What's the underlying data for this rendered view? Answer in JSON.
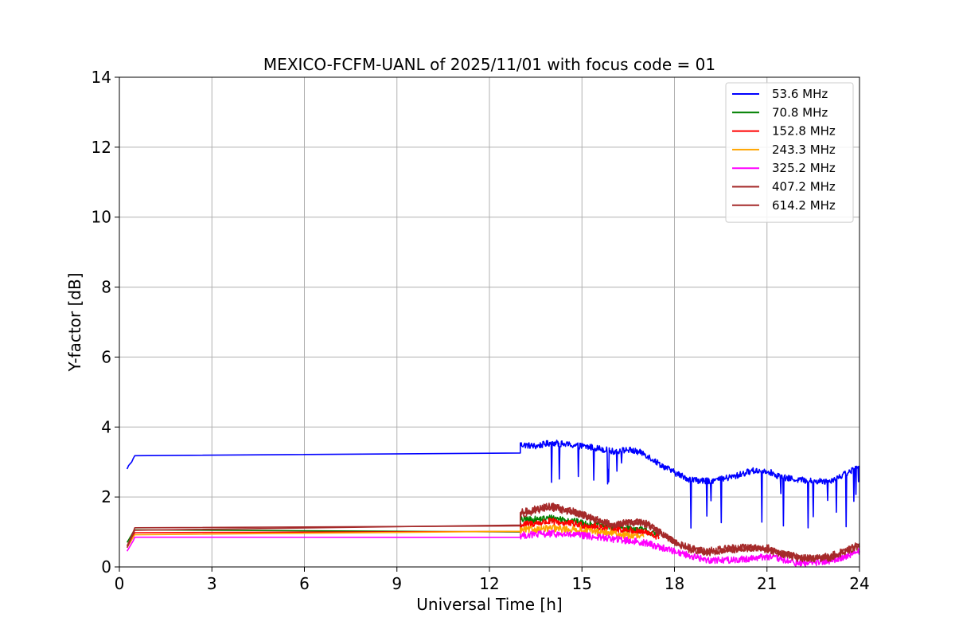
{
  "chart_data": {
    "type": "line",
    "title": "MEXICO-FCFM-UANL of 2025/11/01 with focus code = 01",
    "xlabel": "Universal Time [h]",
    "ylabel": "Y-factor [dB]",
    "xlim": [
      0,
      24
    ],
    "ylim": [
      0,
      14
    ],
    "xticks": [
      "0",
      "3",
      "6",
      "9",
      "12",
      "15",
      "18",
      "21",
      "24"
    ],
    "yticks": [
      "0",
      "2",
      "4",
      "6",
      "8",
      "10",
      "12",
      "14"
    ],
    "grid": true,
    "legend_position": "top-right",
    "series": [
      {
        "name": " 53.6 MHz",
        "color": "#0000ff",
        "x": [
          0.25,
          0.3,
          0.35,
          0.4,
          0.45,
          0.5,
          13.0,
          13.0,
          13.5,
          14.0,
          14.5,
          15.0,
          15.5,
          16.0,
          16.5,
          17.0,
          17.5,
          18.0,
          18.5,
          19.0,
          19.5,
          20.0,
          20.5,
          21.0,
          21.5,
          22.0,
          22.5,
          23.0,
          23.5,
          24.0
        ],
        "y": [
          2.8,
          2.9,
          2.95,
          3.0,
          3.1,
          3.18,
          3.22,
          3.5,
          3.45,
          3.55,
          3.5,
          3.45,
          3.4,
          3.3,
          3.35,
          3.25,
          2.95,
          2.7,
          2.5,
          2.45,
          2.5,
          2.6,
          2.75,
          2.75,
          2.55,
          2.5,
          2.45,
          2.45,
          2.65,
          2.85
        ]
      },
      {
        "name": " 70.8 MHz",
        "color": "#008000",
        "x": [
          0.25,
          0.35,
          0.45,
          0.5,
          13.0,
          13.0,
          13.5,
          14.0,
          14.5,
          15.0,
          15.5,
          16.0,
          16.5,
          17.0,
          17.5
        ],
        "y": [
          0.7,
          0.85,
          1.0,
          1.06,
          1.08,
          1.35,
          1.35,
          1.4,
          1.35,
          1.25,
          1.2,
          1.15,
          1.1,
          1.05,
          0.9
        ]
      },
      {
        "name": "152.8 MHz",
        "color": "#ff0000",
        "x": [
          0.25,
          0.35,
          0.45,
          0.5,
          13.0,
          13.0,
          13.5,
          14.0,
          14.5,
          15.0,
          15.5,
          16.0,
          16.5,
          17.0,
          17.5
        ],
        "y": [
          0.6,
          0.75,
          0.9,
          0.98,
          1.02,
          1.2,
          1.25,
          1.3,
          1.25,
          1.2,
          1.15,
          1.1,
          1.05,
          1.0,
          0.85
        ]
      },
      {
        "name": "243.3 MHz",
        "color": "#ffa500",
        "x": [
          0.25,
          0.35,
          0.45,
          0.5,
          13.0,
          13.0,
          14.0,
          15.0,
          16.0,
          17.0
        ],
        "y": [
          0.55,
          0.7,
          0.85,
          0.92,
          0.95,
          1.05,
          1.1,
          1.05,
          0.95,
          0.85
        ]
      },
      {
        "name": "325.2 MHz",
        "color": "#ff00ff",
        "x": [
          0.25,
          0.35,
          0.45,
          0.5,
          13.0,
          13.0,
          14.0,
          15.0,
          16.0,
          17.0,
          18.0,
          19.0,
          20.0,
          21.0,
          22.0,
          23.0,
          24.0
        ],
        "y": [
          0.45,
          0.6,
          0.75,
          0.85,
          0.9,
          0.9,
          0.95,
          0.9,
          0.8,
          0.7,
          0.45,
          0.2,
          0.2,
          0.3,
          0.1,
          0.15,
          0.45
        ]
      },
      {
        "name": "407.2 MHz",
        "color": "#a52a2a",
        "x": [
          0.25,
          0.35,
          0.45,
          0.5,
          13.0,
          13.0,
          14.0,
          15.0,
          16.0,
          17.0,
          18.0,
          19.0,
          20.0,
          21.0,
          22.0,
          23.0,
          24.0
        ],
        "y": [
          0.6,
          0.8,
          1.0,
          1.12,
          1.15,
          1.5,
          1.7,
          1.5,
          1.2,
          1.3,
          0.7,
          0.4,
          0.5,
          0.55,
          0.25,
          0.25,
          0.6
        ]
      },
      {
        "name": "614.2 MHz",
        "color": "#a52a2a",
        "x": [
          0.25,
          0.35,
          0.45,
          0.5,
          13.0,
          13.0,
          13.5,
          14.0,
          14.5,
          15.0,
          15.5,
          16.0,
          16.5,
          17.0,
          17.5,
          18.0,
          18.5,
          19.0,
          19.5,
          20.0,
          20.5,
          21.0,
          21.5,
          22.0,
          22.5,
          23.0,
          23.5,
          24.0
        ],
        "y": [
          0.55,
          0.75,
          0.95,
          1.05,
          1.1,
          1.55,
          1.65,
          1.75,
          1.65,
          1.5,
          1.3,
          1.2,
          1.3,
          1.25,
          1.0,
          0.7,
          0.5,
          0.45,
          0.5,
          0.55,
          0.55,
          0.5,
          0.35,
          0.3,
          0.25,
          0.3,
          0.45,
          0.65
        ]
      }
    ]
  }
}
